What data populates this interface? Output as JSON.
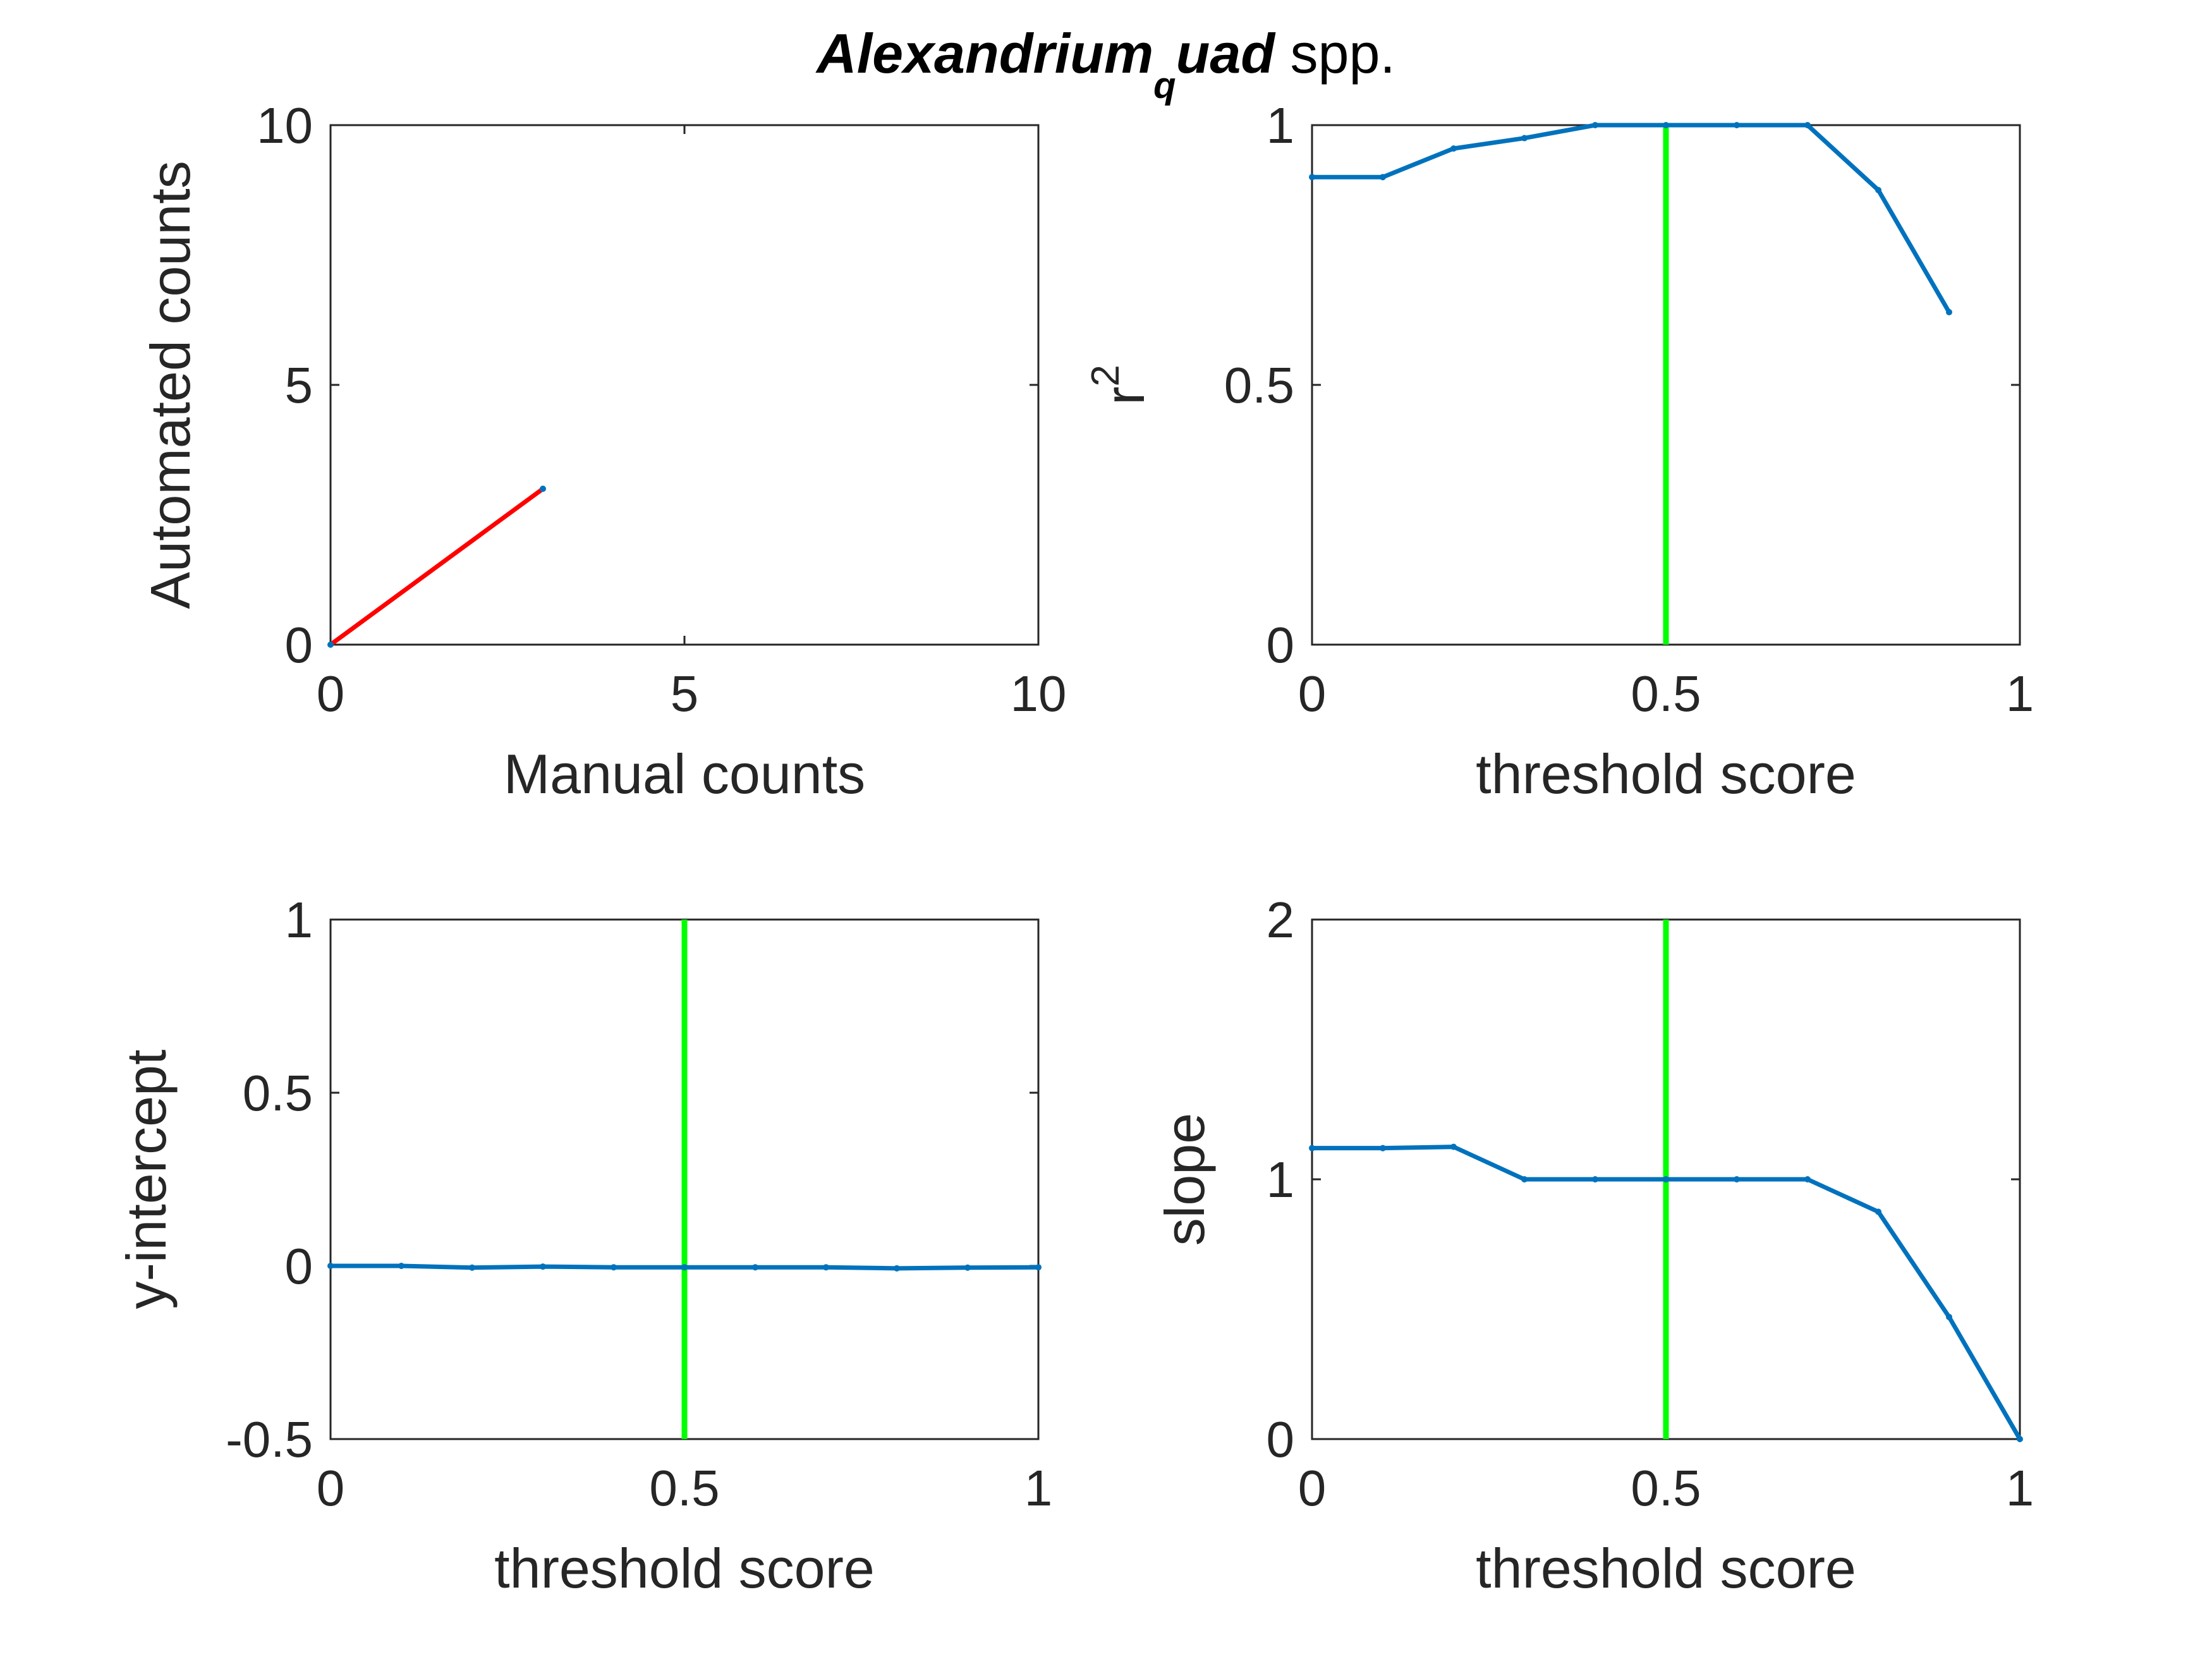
{
  "title": {
    "part1": "Alexandrium",
    "subscript": "q",
    "part2": "uad",
    "suffix": " spp."
  },
  "colors": {
    "line": "#0072BD",
    "fit": "#FF0000",
    "threshold": "#00FF00",
    "axis": "#262626"
  },
  "chart_data": [
    {
      "type": "line",
      "xlabel": "Manual counts",
      "ylabel": "Automated counts",
      "xlim": [
        0,
        10
      ],
      "ylim": [
        0,
        10
      ],
      "xticks": [
        "0",
        "5",
        "10"
      ],
      "yticks": [
        "0",
        "5",
        "10"
      ],
      "series": [
        {
          "color": "#FF0000",
          "x": [
            0,
            3
          ],
          "y": [
            0,
            3
          ]
        }
      ],
      "grid": false
    },
    {
      "type": "line",
      "xlabel": "threshold score",
      "ylabel": "r^2",
      "xlim": [
        0,
        1
      ],
      "ylim": [
        0,
        1
      ],
      "xticks": [
        "0",
        "0.5",
        "1"
      ],
      "yticks": [
        "0",
        "0.5",
        "1"
      ],
      "series": [
        {
          "color": "#0072BD",
          "x": [
            0,
            0.1,
            0.2,
            0.3,
            0.4,
            0.5,
            0.6,
            0.7,
            0.8,
            0.9
          ],
          "y": [
            0.9,
            0.9,
            0.955,
            0.975,
            1.0,
            1.0,
            1.0,
            1.0,
            0.875,
            0.64
          ]
        }
      ],
      "vline": {
        "x": 0.5,
        "color": "#00FF00"
      },
      "grid": false
    },
    {
      "type": "line",
      "xlabel": "threshold score",
      "ylabel": "y-intercept",
      "xlim": [
        0,
        1
      ],
      "ylim": [
        -0.5,
        1
      ],
      "xticks": [
        "0",
        "0.5",
        "1"
      ],
      "yticks": [
        "-0.5",
        "0",
        "0.5",
        "1"
      ],
      "series": [
        {
          "color": "#0072BD",
          "x": [
            0,
            0.1,
            0.2,
            0.3,
            0.4,
            0.5,
            0.6,
            0.7,
            0.8,
            0.9,
            1.0
          ],
          "y": [
            0.0,
            0.0,
            -0.005,
            -0.002,
            -0.004,
            -0.004,
            -0.004,
            -0.004,
            -0.007,
            -0.005,
            -0.004
          ]
        }
      ],
      "vline": {
        "x": 0.5,
        "color": "#00FF00"
      },
      "grid": false
    },
    {
      "type": "line",
      "xlabel": "threshold score",
      "ylabel": "slope",
      "xlim": [
        0,
        1
      ],
      "ylim": [
        0,
        2
      ],
      "xticks": [
        "0",
        "0.5",
        "1"
      ],
      "yticks": [
        "0",
        "1",
        "2"
      ],
      "series": [
        {
          "color": "#0072BD",
          "x": [
            0,
            0.1,
            0.2,
            0.3,
            0.4,
            0.5,
            0.6,
            0.7,
            0.8,
            0.9,
            1.0
          ],
          "y": [
            1.12,
            1.12,
            1.125,
            1.0,
            1.0,
            1.0,
            1.0,
            1.0,
            0.875,
            0.47,
            0.0
          ]
        }
      ],
      "vline": {
        "x": 0.5,
        "color": "#00FF00"
      },
      "grid": false
    }
  ]
}
